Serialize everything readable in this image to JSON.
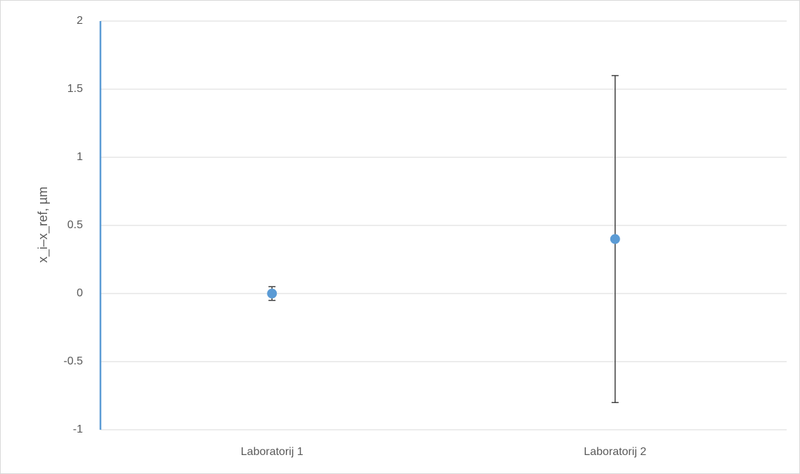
{
  "chart_data": {
    "type": "scatter",
    "y_label": "x_i–x_ref, µm",
    "categories": [
      "Laboratorij 1",
      "Laboratorij 2"
    ],
    "values": [
      0,
      0.4
    ],
    "errors": [
      0.05,
      1.2
    ],
    "color": "#5b9bd5",
    "error_color": "#404040",
    "axis_color": "#5b9bd5",
    "ylim": [
      -1,
      2
    ],
    "yticks": [
      -1,
      -0.5,
      0,
      0.5,
      1,
      1.5,
      2
    ],
    "grid": true
  }
}
